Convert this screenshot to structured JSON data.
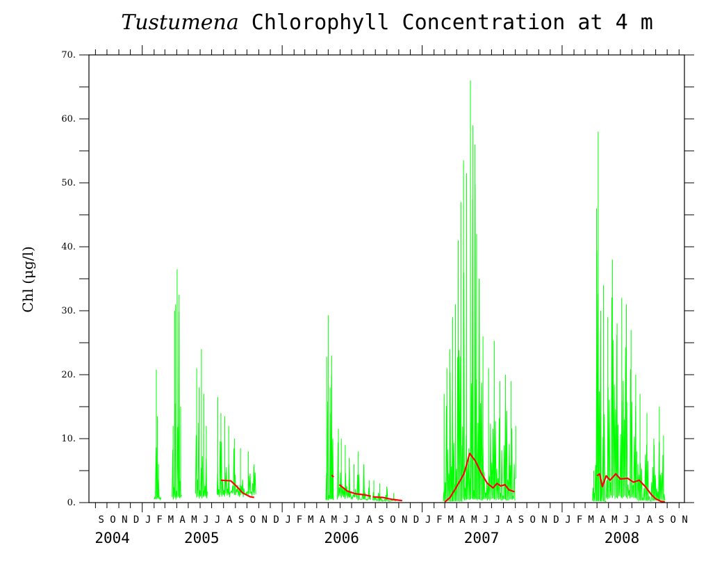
{
  "chart_data": {
    "type": "line",
    "title_italic": "Tustumena",
    "title_rest": " Chlorophyll Concentration at 4 m",
    "ylabel": "Chl (μg/l)",
    "ylim": [
      0,
      70
    ],
    "yticks": [
      "0.",
      "10.",
      "20.",
      "30.",
      "40.",
      "50.",
      "60.",
      "70."
    ],
    "x_months": [
      "S",
      "O",
      "N",
      "D",
      "J",
      "F",
      "M",
      "A",
      "M",
      "J",
      "J",
      "A",
      "S",
      "O",
      "N",
      "D",
      "J",
      "F",
      "M",
      "A",
      "M",
      "J",
      "J",
      "A",
      "S",
      "O",
      "N",
      "D",
      "J",
      "F",
      "M",
      "A",
      "M",
      "J",
      "J",
      "A",
      "S",
      "O",
      "N",
      "D",
      "J",
      "F",
      "M",
      "A",
      "M",
      "J",
      "J",
      "A",
      "S",
      "O",
      "N"
    ],
    "x_years": [
      "2004",
      "2005",
      "2006",
      "2007",
      "2008"
    ],
    "xlim": [
      "2004-08-15",
      "2008-11-15"
    ],
    "series": [
      {
        "color": "#00ff00",
        "style": "raw spikes",
        "segments": [
          {
            "start": "2005-02-01",
            "end": "2005-02-20",
            "base": 0.8,
            "peaks": [
              [
                0.3,
                20.8
              ],
              [
                0.45,
                13.5
              ],
              [
                0.6,
                6
              ]
            ]
          },
          {
            "start": "2005-03-20",
            "end": "2005-04-15",
            "base": 0.8,
            "peaks": [
              [
                0.1,
                12
              ],
              [
                0.25,
                30
              ],
              [
                0.35,
                31
              ],
              [
                0.5,
                36.5
              ],
              [
                0.7,
                32.5
              ],
              [
                0.85,
                15
              ]
            ]
          },
          {
            "start": "2005-05-20",
            "end": "2005-06-20",
            "base": 1.0,
            "peaks": [
              [
                0.1,
                21
              ],
              [
                0.3,
                18
              ],
              [
                0.5,
                24
              ],
              [
                0.7,
                17
              ],
              [
                0.9,
                12
              ]
            ]
          },
          {
            "start": "2005-07-15",
            "end": "2005-10-25",
            "base": 1.2,
            "peaks": [
              [
                0.02,
                16.5
              ],
              [
                0.1,
                14
              ],
              [
                0.2,
                13.5
              ],
              [
                0.3,
                12
              ],
              [
                0.45,
                10
              ],
              [
                0.6,
                8.5
              ],
              [
                0.8,
                8
              ],
              [
                0.95,
                6
              ]
            ]
          },
          {
            "start": "2006-04-25",
            "end": "2006-05-15",
            "base": 0.5,
            "peaks": [
              [
                0.1,
                22.8
              ],
              [
                0.3,
                29.3
              ],
              [
                0.55,
                18
              ],
              [
                0.75,
                23
              ],
              [
                0.9,
                10
              ]
            ]
          },
          {
            "start": "2006-05-25",
            "end": "2006-07-15",
            "base": 0.8,
            "peaks": [
              [
                0.05,
                11.5
              ],
              [
                0.2,
                10
              ],
              [
                0.4,
                9
              ],
              [
                0.6,
                7
              ],
              [
                0.85,
                6
              ]
            ]
          },
          {
            "start": "2006-07-15",
            "end": "2006-08-20",
            "base": 0.5,
            "peaks": [
              [
                0.1,
                8
              ],
              [
                0.5,
                6
              ],
              [
                0.9,
                3.5
              ]
            ]
          },
          {
            "start": "2006-08-25",
            "end": "2006-10-25",
            "base": 0.3,
            "peaks": [
              [
                0.05,
                3.5
              ],
              [
                0.3,
                3
              ],
              [
                0.6,
                2.5
              ],
              [
                0.9,
                1.5
              ]
            ]
          },
          {
            "start": "2007-02-25",
            "end": "2007-04-15",
            "base": 0.2,
            "peaks": [
              [
                0.05,
                17
              ],
              [
                0.2,
                21
              ],
              [
                0.35,
                24
              ],
              [
                0.5,
                29
              ],
              [
                0.65,
                31
              ],
              [
                0.8,
                41
              ],
              [
                0.95,
                47
              ]
            ]
          },
          {
            "start": "2007-04-15",
            "end": "2007-05-25",
            "base": 0.5,
            "peaks": [
              [
                0.1,
                53.5
              ],
              [
                0.3,
                51.5
              ],
              [
                0.55,
                66
              ],
              [
                0.7,
                59
              ],
              [
                0.85,
                56
              ],
              [
                0.95,
                42
              ]
            ]
          },
          {
            "start": "2007-05-25",
            "end": "2007-08-31",
            "base": 0.5,
            "peaks": [
              [
                0.05,
                35
              ],
              [
                0.15,
                26
              ],
              [
                0.3,
                21
              ],
              [
                0.45,
                25.3
              ],
              [
                0.6,
                19
              ],
              [
                0.75,
                20
              ],
              [
                0.9,
                19
              ]
            ]
          },
          {
            "start": "2007-09-01",
            "end": "2007-09-03",
            "base": 4,
            "peaks": [
              [
                0.5,
                12
              ]
            ]
          },
          {
            "start": "2008-03-20",
            "end": "2008-04-25",
            "base": 0.2,
            "peaks": [
              [
                0.1,
                5
              ],
              [
                0.3,
                46
              ],
              [
                0.42,
                58
              ],
              [
                0.6,
                30
              ],
              [
                0.8,
                34
              ]
            ]
          },
          {
            "start": "2008-04-25",
            "end": "2008-07-15",
            "base": 0.8,
            "peaks": [
              [
                0.05,
                29
              ],
              [
                0.2,
                38
              ],
              [
                0.35,
                28
              ],
              [
                0.5,
                32
              ],
              [
                0.65,
                31
              ],
              [
                0.8,
                27
              ],
              [
                0.95,
                20
              ]
            ]
          },
          {
            "start": "2008-07-15",
            "end": "2008-09-25",
            "base": 0.3,
            "peaks": [
              [
                0.1,
                17
              ],
              [
                0.35,
                14
              ],
              [
                0.6,
                10
              ],
              [
                0.8,
                15
              ],
              [
                0.95,
                10.5
              ]
            ]
          }
        ]
      },
      {
        "color": "#ff0000",
        "style": "smoothed",
        "segments": [
          [
            [
              "2005-07-25",
              3.5
            ],
            [
              "2005-08-20",
              3.4
            ],
            [
              "2005-09-05",
              2.5
            ],
            [
              "2005-09-20",
              1.5
            ],
            [
              "2005-10-10",
              0.9
            ],
            [
              "2005-10-20",
              0.8
            ]
          ],
          [
            [
              "2006-05-10",
              4.3
            ],
            [
              "2006-05-15",
              4.0
            ]
          ],
          [
            [
              "2006-05-30",
              2.8
            ],
            [
              "2006-06-20",
              1.8
            ],
            [
              "2006-07-10",
              1.4
            ],
            [
              "2006-08-05",
              1.2
            ],
            [
              "2006-08-20",
              1.0
            ]
          ],
          [
            [
              "2006-08-25",
              0.9
            ],
            [
              "2006-09-20",
              0.8
            ],
            [
              "2006-10-15",
              0.5
            ],
            [
              "2006-11-10",
              0.3
            ]
          ],
          [
            [
              "2007-03-01",
              0.1
            ],
            [
              "2007-03-15",
              0.8
            ],
            [
              "2007-04-01",
              2.5
            ],
            [
              "2007-04-20",
              4.5
            ],
            [
              "2007-05-05",
              7.7
            ],
            [
              "2007-05-20",
              6.5
            ],
            [
              "2007-06-05",
              4.5
            ],
            [
              "2007-06-20",
              3.0
            ],
            [
              "2007-07-05",
              2.3
            ],
            [
              "2007-07-15",
              3.0
            ],
            [
              "2007-07-25",
              2.6
            ],
            [
              "2007-08-05",
              2.8
            ],
            [
              "2007-08-15",
              2.0
            ],
            [
              "2007-08-30",
              1.7
            ]
          ],
          [
            [
              "2008-04-01",
              4.2
            ],
            [
              "2008-04-08",
              4.5
            ],
            [
              "2008-04-15",
              2.5
            ],
            [
              "2008-04-25",
              4.2
            ],
            [
              "2008-05-05",
              3.5
            ],
            [
              "2008-05-20",
              4.5
            ],
            [
              "2008-06-01",
              3.7
            ],
            [
              "2008-06-20",
              3.8
            ],
            [
              "2008-07-05",
              3.2
            ],
            [
              "2008-07-20",
              3.5
            ],
            [
              "2008-08-05",
              2.5
            ],
            [
              "2008-08-20",
              1.3
            ],
            [
              "2008-09-01",
              0.6
            ],
            [
              "2008-09-15",
              0.2
            ],
            [
              "2008-09-25",
              0.1
            ]
          ]
        ]
      }
    ]
  }
}
